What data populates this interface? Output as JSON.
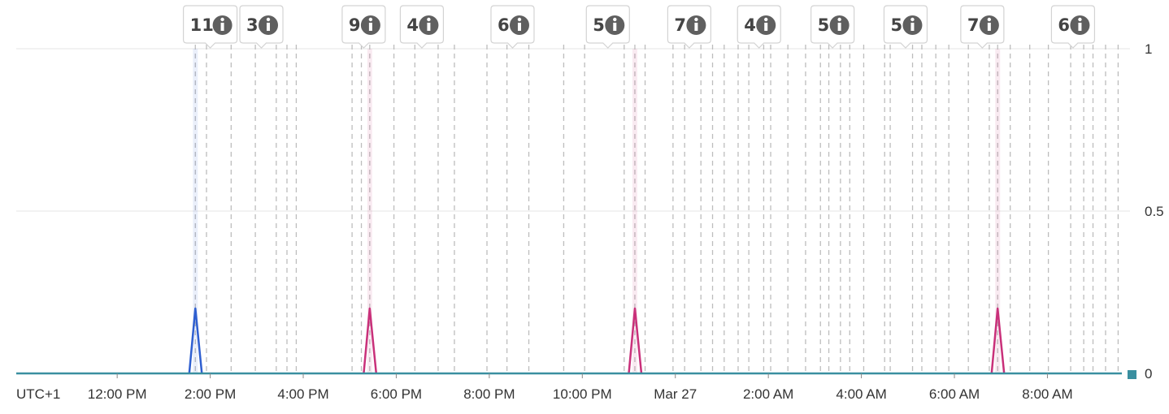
{
  "chart_data": {
    "type": "line",
    "timezone_label": "UTC+1",
    "x_ticks": [
      {
        "label": "12:00 PM",
        "hour": 12
      },
      {
        "label": "2:00 PM",
        "hour": 14
      },
      {
        "label": "4:00 PM",
        "hour": 16
      },
      {
        "label": "6:00 PM",
        "hour": 18
      },
      {
        "label": "8:00 PM",
        "hour": 20
      },
      {
        "label": "10:00 PM",
        "hour": 22
      },
      {
        "label": "Mar 27",
        "hour": 24
      },
      {
        "label": "2:00 AM",
        "hour": 26
      },
      {
        "label": "4:00 AM",
        "hour": 28
      },
      {
        "label": "6:00 AM",
        "hour": 30
      },
      {
        "label": "8:00 AM",
        "hour": 32
      }
    ],
    "x_range": [
      9.83,
      33.6
    ],
    "y_ticks": [
      "1",
      "0.5",
      "0"
    ],
    "ylim": [
      0,
      1
    ],
    "grid": true,
    "series": [
      {
        "color": "#2f5fd0",
        "points": [
          [
            13.55,
            0
          ],
          [
            13.68,
            0.2
          ],
          [
            13.82,
            0
          ]
        ]
      },
      {
        "color": "#c9307a",
        "points": [
          [
            17.3,
            0
          ],
          [
            17.43,
            0.2
          ],
          [
            17.57,
            0
          ]
        ]
      },
      {
        "color": "#c9307a",
        "points": [
          [
            23.0,
            0
          ],
          [
            23.13,
            0.2
          ],
          [
            23.27,
            0
          ]
        ]
      },
      {
        "color": "#c9307a",
        "points": [
          [
            30.8,
            0
          ],
          [
            30.93,
            0.2
          ],
          [
            31.07,
            0
          ]
        ]
      }
    ],
    "baseline_color": "#3a8fa0",
    "annotation_groups": [
      {
        "count": "11",
        "hour": 14.0
      },
      {
        "count": "3",
        "hour": 15.1
      },
      {
        "count": "9",
        "hour": 17.3
      },
      {
        "count": "4",
        "hour": 18.55
      },
      {
        "count": "6",
        "hour": 20.5
      },
      {
        "count": "5",
        "hour": 22.55
      },
      {
        "count": "7",
        "hour": 24.3
      },
      {
        "count": "4",
        "hour": 25.8
      },
      {
        "count": "5",
        "hour": 27.38
      },
      {
        "count": "5",
        "hour": 28.95
      },
      {
        "count": "7",
        "hour": 30.6
      },
      {
        "count": "6",
        "hour": 32.55
      }
    ],
    "annotation_lines_hours": [
      13.68,
      13.92,
      14.45,
      14.97,
      15.42,
      15.65,
      15.85,
      17.05,
      17.25,
      17.43,
      17.95,
      18.4,
      18.9,
      19.25,
      19.95,
      20.38,
      20.85,
      21.6,
      22.05,
      22.9,
      23.13,
      23.35,
      23.95,
      24.2,
      24.55,
      24.8,
      25.05,
      25.35,
      25.58,
      25.9,
      26.05,
      26.42,
      26.8,
      27.12,
      27.3,
      27.55,
      27.75,
      28.05,
      28.5,
      28.62,
      29.1,
      29.3,
      29.6,
      29.88,
      30.3,
      30.75,
      30.93,
      31.2,
      31.62,
      32.02,
      32.5,
      32.78,
      32.98,
      33.25,
      33.52
    ]
  }
}
